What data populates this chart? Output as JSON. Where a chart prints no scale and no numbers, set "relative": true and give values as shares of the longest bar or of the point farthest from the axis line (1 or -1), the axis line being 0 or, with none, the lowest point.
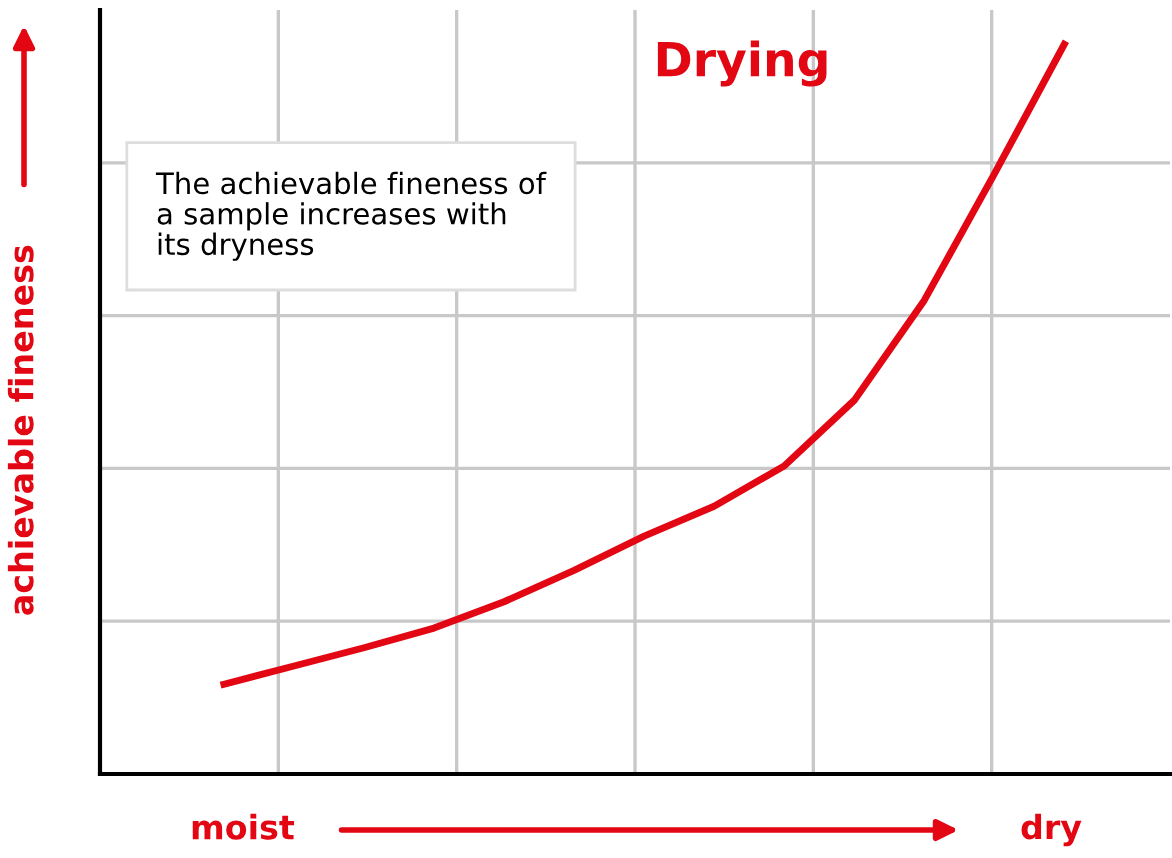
{
  "chart_data": {
    "type": "line",
    "title": "Drying",
    "ylabel": "achievable fineness",
    "relative": true,
    "grid": true,
    "marker": "none",
    "line_style": "solid",
    "annotations": [
      "The achievable fineness of\na sample increases with\nits dryness",
      "moist",
      "dry"
    ],
    "categories": [
      null,
      null,
      null,
      null,
      null,
      null,
      null,
      null,
      null,
      null,
      null,
      null,
      null
    ],
    "series": [
      {
        "color": "#e30613",
        "values": [
          0.123,
          0.148,
          0.173,
          0.2,
          0.236,
          0.279,
          0.326,
          0.367,
          0.422,
          0.512,
          0.649,
          0.822,
          1.0
        ]
      }
    ]
  }
}
